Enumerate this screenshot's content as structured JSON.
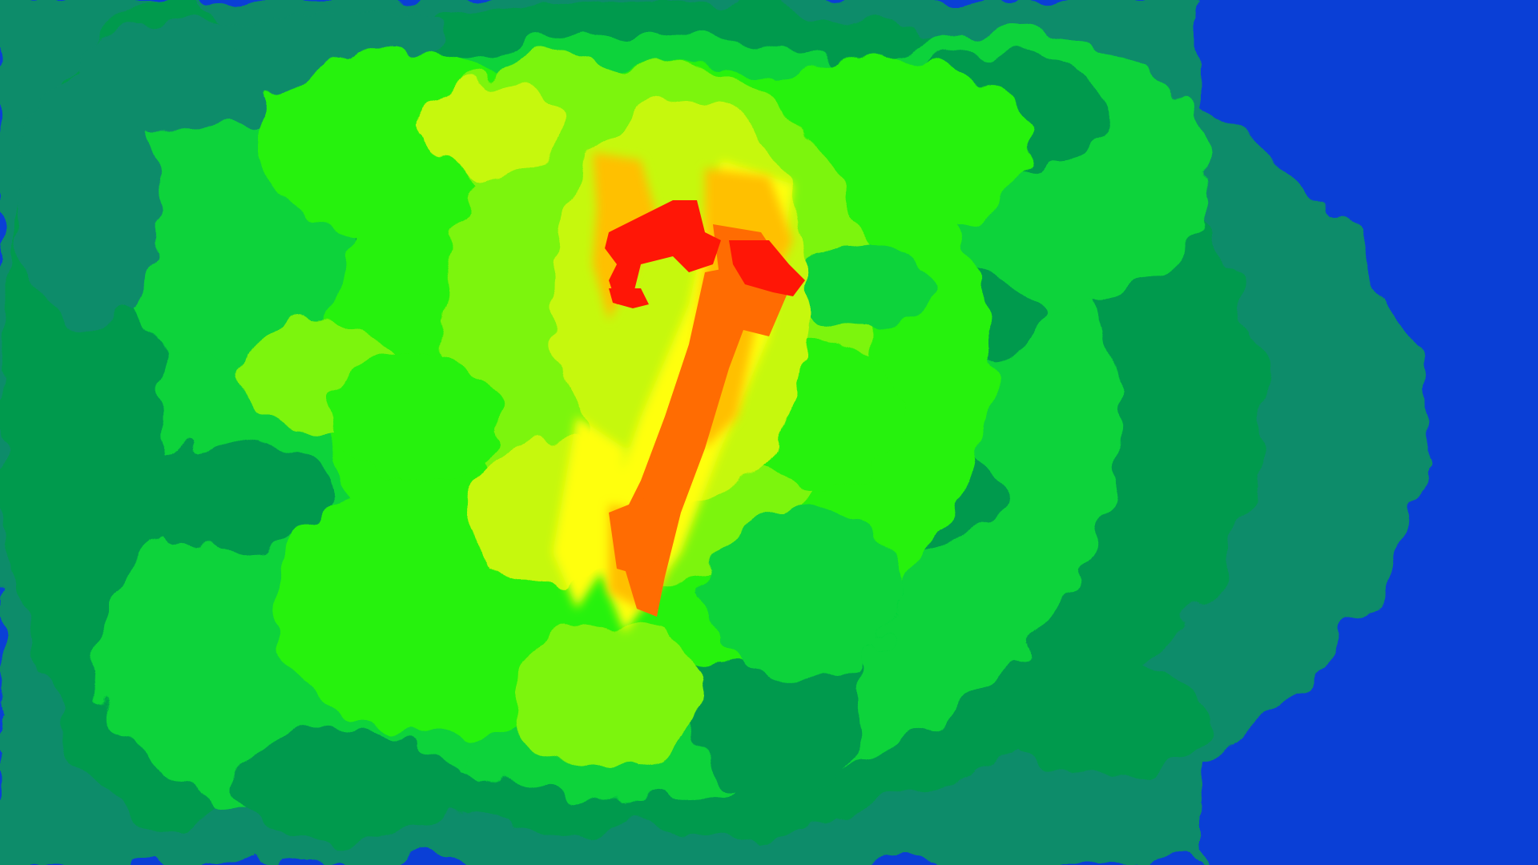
{
  "image": {
    "kind": "false-color heatmap",
    "palette": {
      "outer_blue": "#0a3fd6",
      "deep_blue": "#0233e0",
      "teal": "#0f8c6a",
      "dark_green": "#059a4e",
      "green": "#08d33a",
      "bright_green": "#27f20a",
      "lime": "#7cf508",
      "yellow_green": "#c6f80a",
      "yellow": "#ffff08",
      "orange_yellow": "#ffc006",
      "orange": "#ff6c02",
      "red": "#ff1606"
    }
  }
}
